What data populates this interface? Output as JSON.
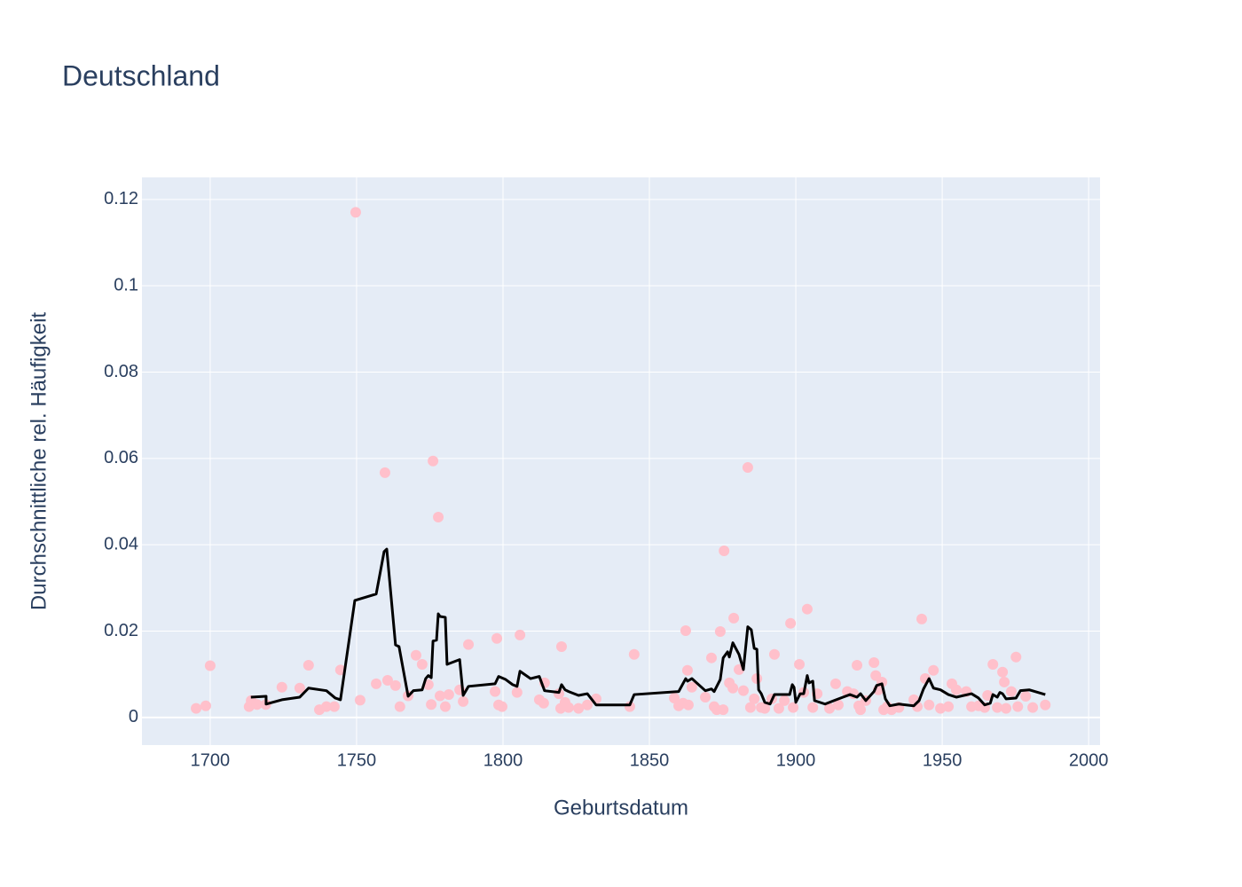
{
  "chart_data": {
    "type": "scatter",
    "title": "Deutschland",
    "xlabel": "Geburtsdatum",
    "ylabel": "Durchschnittliche rel. Häufigkeit",
    "xlim": [
      1676.7,
      2003.9
    ],
    "ylim": [
      -0.0064,
      0.1251
    ],
    "xticks": [
      1700,
      1750,
      1800,
      1850,
      1900,
      1950,
      2000
    ],
    "yticks": [
      0,
      0.02,
      0.04,
      0.06,
      0.08,
      0.1,
      0.12
    ],
    "grid": true,
    "background": "#e5ecf6",
    "grid_color": "#ffffff",
    "series": [
      {
        "type": "scatter",
        "color": "#ffc0cb",
        "x": [
          1695.2,
          1698.5,
          1700,
          1713.3,
          1714,
          1716,
          1719,
          1724.5,
          1730.6,
          1733.6,
          1737.3,
          1739.7,
          1742.4,
          1744.5,
          1749.7,
          1751.2,
          1756.7,
          1759.7,
          1760.6,
          1763.3,
          1764.8,
          1767.6,
          1770.3,
          1772.4,
          1774.5,
          1776.1,
          1775.5,
          1777.9,
          1778.5,
          1780.3,
          1781.5,
          1785.2,
          1786.4,
          1788.2,
          1797.3,
          1797.9,
          1798.5,
          1799.7,
          1804.8,
          1805.8,
          1812.4,
          1813.9,
          1814.2,
          1819.1,
          1819.7,
          1820,
          1821.2,
          1822.4,
          1825.8,
          1828.8,
          1831.8,
          1843.3,
          1844.8,
          1858.5,
          1860,
          1861.5,
          1862.4,
          1863,
          1863.3,
          1864.5,
          1869.1,
          1871.2,
          1872.1,
          1873,
          1874.2,
          1875.2,
          1875.5,
          1877.3,
          1878.5,
          1878.8,
          1880.6,
          1882.1,
          1883.6,
          1884.5,
          1885.8,
          1886.7,
          1888.2,
          1889.4,
          1891.8,
          1892.7,
          1894.2,
          1896.1,
          1898.2,
          1899.1,
          1901.2,
          1902.7,
          1903.9,
          1905.8,
          1907.3,
          1911.5,
          1913.6,
          1914.5,
          1917.6,
          1919.7,
          1920.9,
          1921.5,
          1922.1,
          1923.9,
          1926.7,
          1927.3,
          1928.2,
          1929.4,
          1930,
          1931.2,
          1932.7,
          1935.2,
          1940.3,
          1941.5,
          1943,
          1944.2,
          1945.5,
          1947,
          1949.4,
          1952.1,
          1953.3,
          1954.8,
          1958.2,
          1960,
          1962.4,
          1964.5,
          1965.5,
          1967.3,
          1968.8,
          1970.6,
          1971.2,
          1971.8,
          1973.6,
          1975.2,
          1975.8,
          1978.5,
          1980.9,
          1985.2
        ],
        "values": [
          0.0021,
          0.0027,
          0.012,
          0.0025,
          0.0039,
          0.003,
          0.003,
          0.007,
          0.0068,
          0.0121,
          0.0018,
          0.0025,
          0.0025,
          0.011,
          0.117,
          0.004,
          0.0078,
          0.0567,
          0.0086,
          0.0074,
          0.0025,
          0.005,
          0.0144,
          0.0123,
          0.0076,
          0.0594,
          0.003,
          0.0464,
          0.005,
          0.0025,
          0.0053,
          0.0064,
          0.0037,
          0.0169,
          0.006,
          0.0183,
          0.0029,
          0.0025,
          0.0058,
          0.0191,
          0.0041,
          0.0033,
          0.008,
          0.0055,
          0.0021,
          0.0164,
          0.0035,
          0.0023,
          0.0021,
          0.0029,
          0.0043,
          0.0025,
          0.0146,
          0.0045,
          0.0027,
          0.0033,
          0.0201,
          0.0109,
          0.0029,
          0.007,
          0.0047,
          0.0138,
          0.0025,
          0.0018,
          0.0199,
          0.0018,
          0.0386,
          0.008,
          0.0068,
          0.023,
          0.0111,
          0.0062,
          0.0579,
          0.0023,
          0.0043,
          0.009,
          0.0023,
          0.0021,
          0.0043,
          0.0146,
          0.0021,
          0.0039,
          0.0218,
          0.0023,
          0.0123,
          0.0058,
          0.0251,
          0.0023,
          0.0055,
          0.0021,
          0.0078,
          0.0029,
          0.006,
          0.0055,
          0.0121,
          0.0027,
          0.0018,
          0.0039,
          0.0127,
          0.0097,
          0.0064,
          0.0082,
          0.0018,
          0.0025,
          0.0018,
          0.0023,
          0.0041,
          0.0025,
          0.0228,
          0.009,
          0.0029,
          0.0109,
          0.0021,
          0.0025,
          0.0078,
          0.0064,
          0.006,
          0.0025,
          0.0027,
          0.0023,
          0.0051,
          0.0123,
          0.0023,
          0.0105,
          0.0082,
          0.0021,
          0.006,
          0.014,
          0.0025,
          0.0049,
          0.0023,
          0.0029
        ]
      },
      {
        "type": "line",
        "color": "#000000",
        "x": [
          1713.9,
          1719.1,
          1719.1,
          1724.5,
          1730.6,
          1733.6,
          1739.7,
          1742.7,
          1744.5,
          1749.4,
          1756.7,
          1759.4,
          1760.3,
          1763.3,
          1764.5,
          1767.6,
          1769.4,
          1772.4,
          1773.6,
          1774.5,
          1775.5,
          1776.1,
          1777.3,
          1777.9,
          1778.5,
          1780.3,
          1780.9,
          1785.2,
          1786.4,
          1788.2,
          1797.3,
          1798.5,
          1800.9,
          1803.3,
          1804.8,
          1805.8,
          1809.4,
          1812.4,
          1814.2,
          1819.1,
          1820,
          1821.2,
          1822.4,
          1825.8,
          1828.8,
          1831.8,
          1843.3,
          1844.8,
          1860,
          1862.4,
          1863,
          1864.5,
          1869.1,
          1871.2,
          1872.1,
          1874.2,
          1875.2,
          1876.7,
          1877.3,
          1878.5,
          1880.6,
          1882.1,
          1883.6,
          1884.8,
          1885.8,
          1886.7,
          1887.3,
          1888.2,
          1889.4,
          1891.2,
          1892.7,
          1897.9,
          1898.8,
          1899.4,
          1900,
          1901.5,
          1902.7,
          1903.9,
          1904.5,
          1905.8,
          1906.4,
          1910,
          1913,
          1916.1,
          1918.5,
          1920.9,
          1922.1,
          1923.9,
          1926.7,
          1927.6,
          1929.4,
          1930.6,
          1932.1,
          1935.2,
          1940.3,
          1942.1,
          1943.6,
          1945.5,
          1947,
          1949.4,
          1952.1,
          1954.8,
          1960,
          1962.4,
          1964.5,
          1966.4,
          1967.3,
          1968.8,
          1969.7,
          1970.6,
          1971.8,
          1975.2,
          1976.7,
          1979.7,
          1985.2
        ],
        "values": [
          0.0047,
          0.0049,
          0.0031,
          0.0041,
          0.0047,
          0.0068,
          0.0062,
          0.0045,
          0.0041,
          0.0271,
          0.0286,
          0.0384,
          0.039,
          0.0168,
          0.0164,
          0.0049,
          0.0062,
          0.0064,
          0.009,
          0.0097,
          0.0092,
          0.0177,
          0.0179,
          0.024,
          0.0234,
          0.0232,
          0.0123,
          0.0134,
          0.0051,
          0.0072,
          0.0078,
          0.0095,
          0.0088,
          0.0076,
          0.0072,
          0.0107,
          0.009,
          0.0095,
          0.0062,
          0.0058,
          0.0076,
          0.0064,
          0.006,
          0.0051,
          0.0055,
          0.0029,
          0.0029,
          0.0053,
          0.006,
          0.009,
          0.0084,
          0.009,
          0.0062,
          0.0066,
          0.006,
          0.0088,
          0.0138,
          0.0152,
          0.014,
          0.0173,
          0.0146,
          0.0111,
          0.021,
          0.0203,
          0.016,
          0.0158,
          0.0064,
          0.0055,
          0.0035,
          0.0031,
          0.0053,
          0.0053,
          0.0076,
          0.007,
          0.0035,
          0.0055,
          0.0055,
          0.0097,
          0.008,
          0.0084,
          0.0039,
          0.0031,
          0.0039,
          0.0047,
          0.0053,
          0.0047,
          0.0055,
          0.0039,
          0.006,
          0.0074,
          0.0078,
          0.0043,
          0.0027,
          0.0031,
          0.0027,
          0.0039,
          0.0066,
          0.009,
          0.0068,
          0.0064,
          0.0053,
          0.0047,
          0.0055,
          0.0045,
          0.0029,
          0.0033,
          0.0053,
          0.0047,
          0.0058,
          0.0055,
          0.0043,
          0.0045,
          0.0062,
          0.0064,
          0.0053
        ]
      }
    ]
  }
}
